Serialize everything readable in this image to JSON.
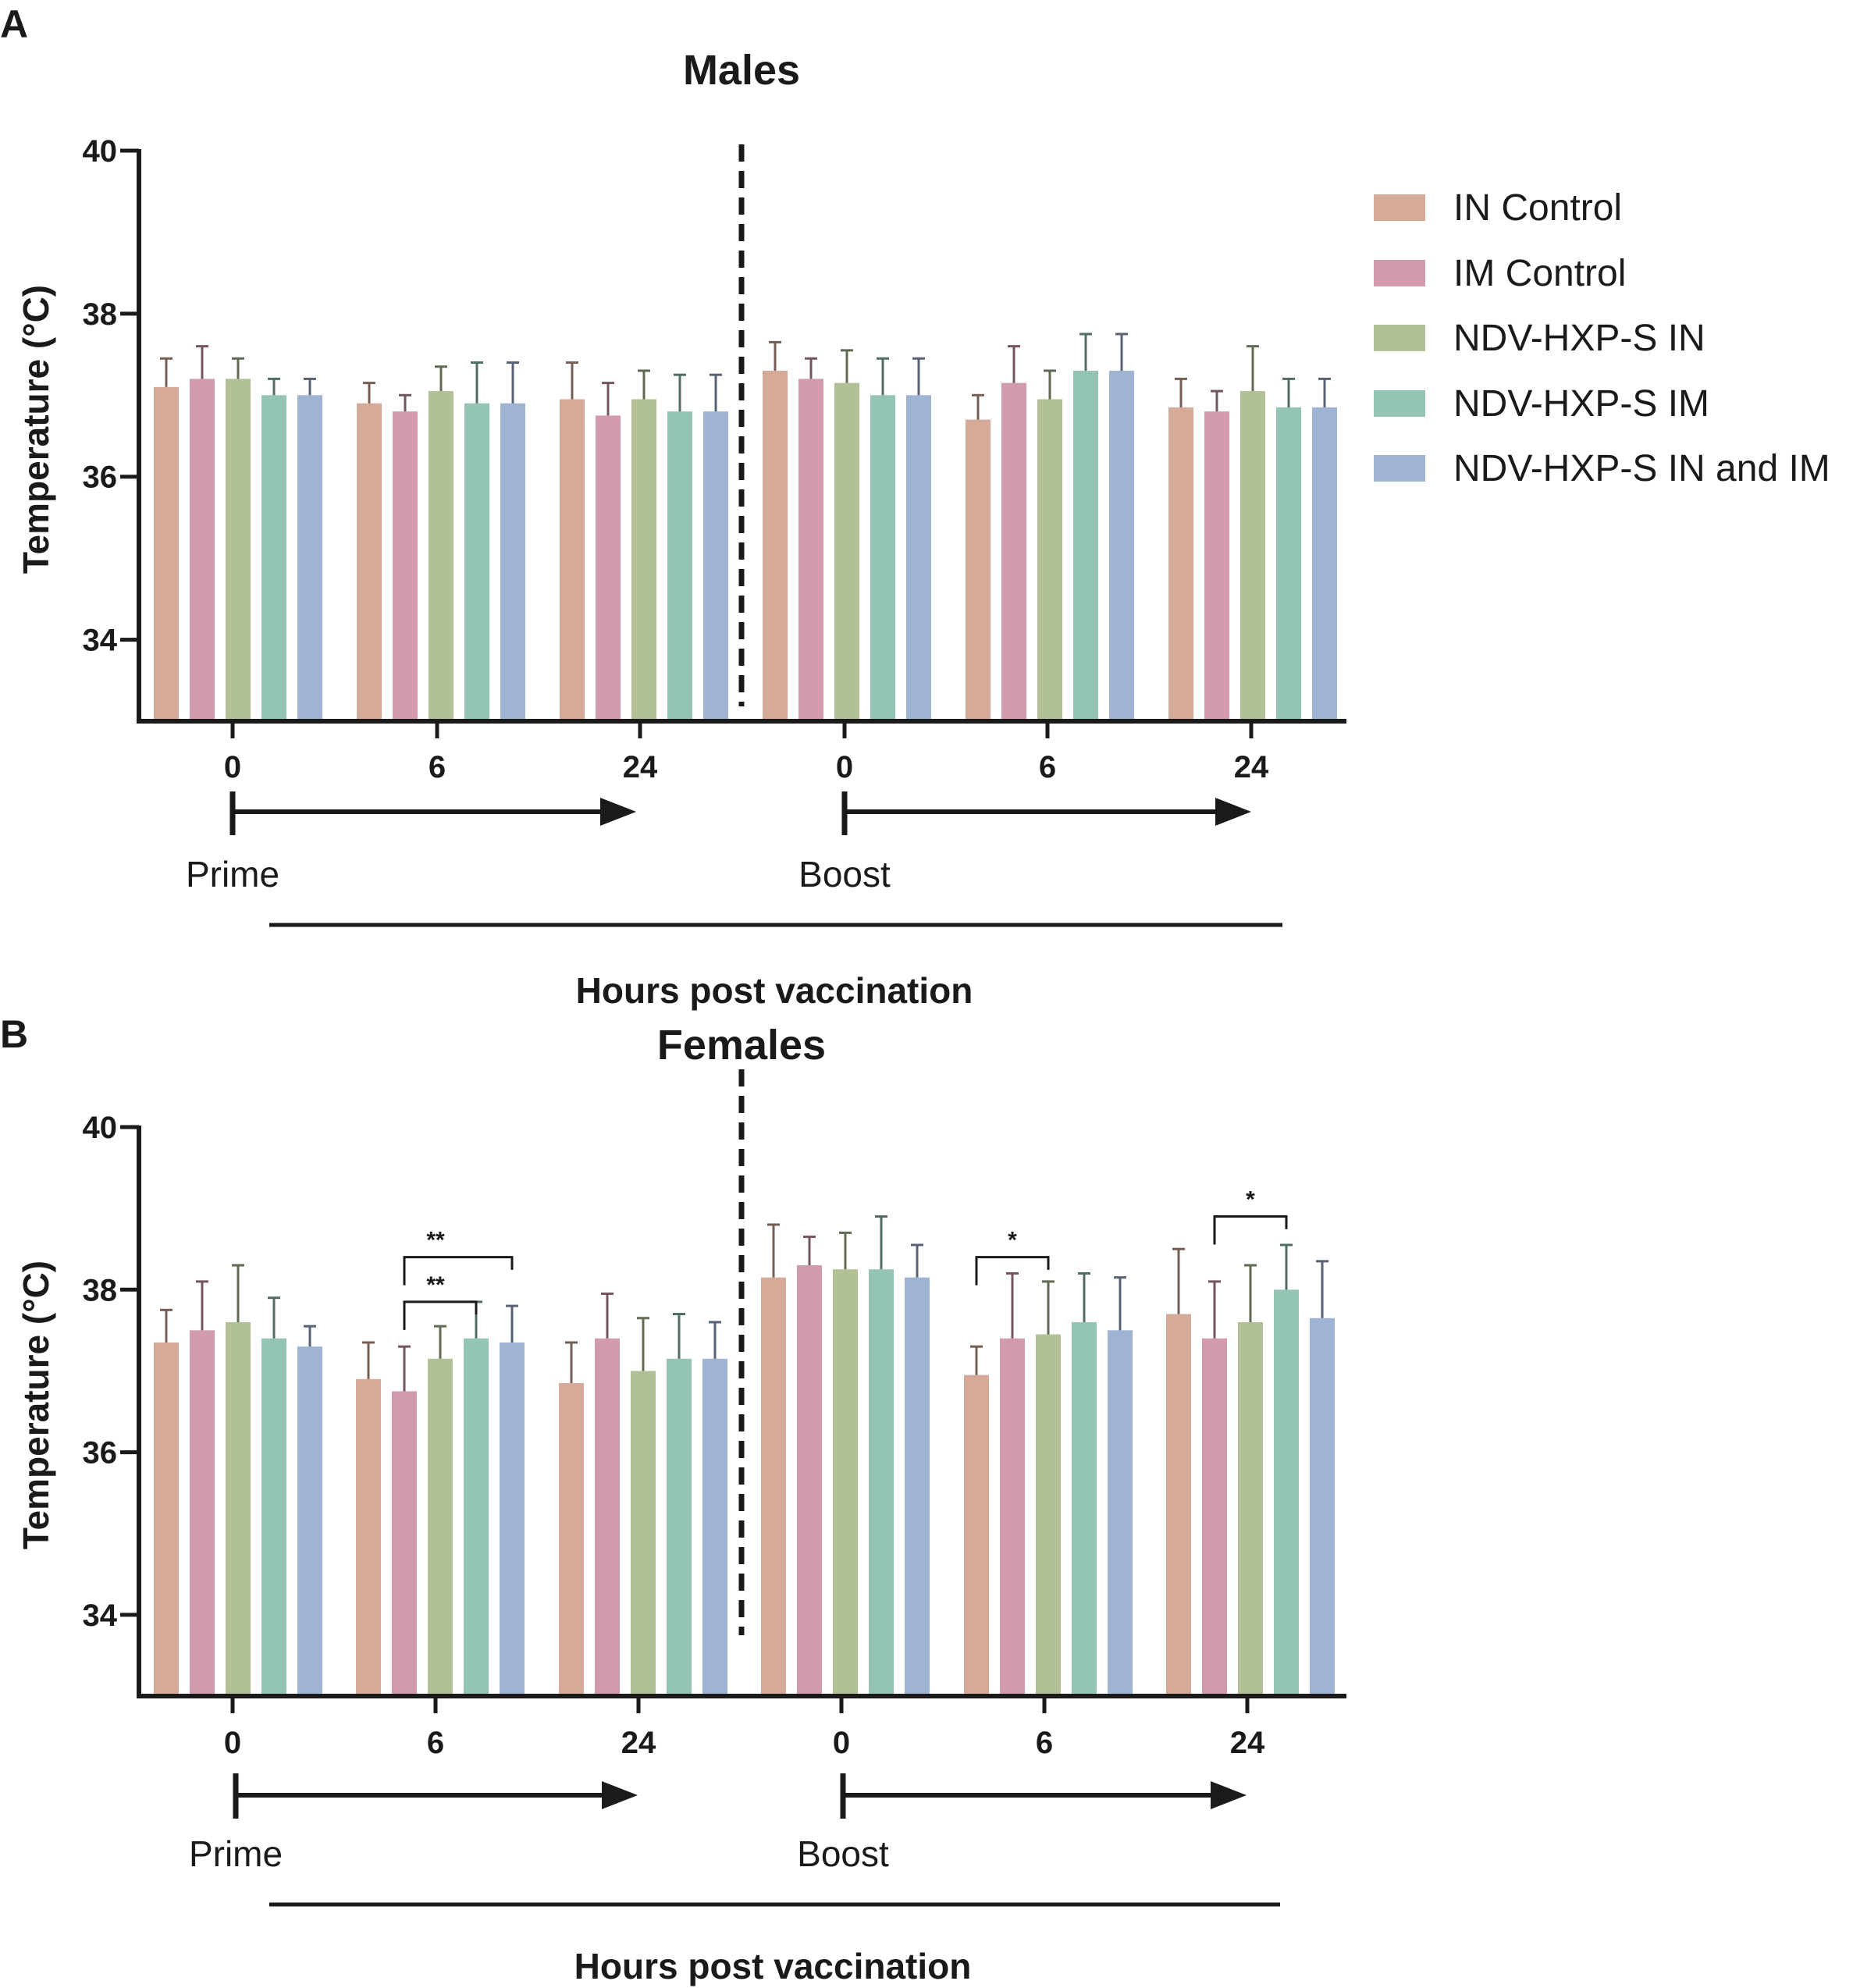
{
  "legend": {
    "items": [
      {
        "label": "IN Control",
        "color": "#d5aa98"
      },
      {
        "label": "IM Control",
        "color": "#d19aae"
      },
      {
        "label": "NDV-HXP-S IN",
        "color": "#b1c095"
      },
      {
        "label": "NDV-HXP-S IM",
        "color": "#93c4b6"
      },
      {
        "label": "NDV-HXP-S IN and IM",
        "color": "#9fb3d4"
      }
    ]
  },
  "chart_data": [
    {
      "type": "bar",
      "panel": "A",
      "title": "Males",
      "ylabel": "Temperature  (°C)",
      "xlabel": "Hours post vaccination",
      "ylim": [
        33,
        40
      ],
      "yticks": [
        "34",
        "36",
        "38",
        "40"
      ],
      "phases": [
        "Prime",
        "Boost"
      ],
      "categories": [
        "0",
        "6",
        "24",
        "0",
        "6",
        "24"
      ],
      "series": [
        {
          "name": "IN Control",
          "values": [
            37.1,
            36.9,
            36.95,
            37.3,
            36.7,
            36.85
          ],
          "errors": [
            0.35,
            0.25,
            0.45,
            0.35,
            0.3,
            0.35
          ]
        },
        {
          "name": "IM Control",
          "values": [
            37.2,
            36.8,
            36.75,
            37.2,
            37.15,
            36.8
          ],
          "errors": [
            0.4,
            0.2,
            0.4,
            0.25,
            0.45,
            0.25
          ]
        },
        {
          "name": "NDV-HXP-S IN",
          "values": [
            37.2,
            37.05,
            36.95,
            37.15,
            36.95,
            37.05
          ],
          "errors": [
            0.25,
            0.3,
            0.35,
            0.4,
            0.35,
            0.55
          ]
        },
        {
          "name": "NDV-HXP-S IM",
          "values": [
            37.0,
            36.9,
            36.8,
            37.0,
            37.3,
            36.85
          ],
          "errors": [
            0.2,
            0.5,
            0.45,
            0.45,
            0.45,
            0.35
          ]
        },
        {
          "name": "NDV-HXP-S IN and IM",
          "values": [
            37.0,
            36.9,
            36.8,
            37.0,
            37.3,
            36.85
          ],
          "errors": [
            0.2,
            0.5,
            0.45,
            0.45,
            0.45,
            0.35
          ]
        }
      ],
      "significance": []
    },
    {
      "type": "bar",
      "panel": "B",
      "title": "Females",
      "ylabel": "Temperature  (°C)",
      "xlabel": "Hours post vaccination",
      "ylim": [
        33,
        40
      ],
      "yticks": [
        "34",
        "36",
        "38",
        "40"
      ],
      "phases": [
        "Prime",
        "Boost"
      ],
      "categories": [
        "0",
        "6",
        "24",
        "0",
        "6",
        "24"
      ],
      "series": [
        {
          "name": "IN Control",
          "values": [
            37.35,
            36.9,
            36.85,
            38.15,
            36.95,
            37.7
          ],
          "errors": [
            0.4,
            0.45,
            0.5,
            0.65,
            0.35,
            0.8
          ]
        },
        {
          "name": "IM Control",
          "values": [
            37.5,
            36.75,
            37.4,
            38.3,
            37.4,
            37.4
          ],
          "errors": [
            0.6,
            0.55,
            0.55,
            0.35,
            0.8,
            0.7
          ]
        },
        {
          "name": "NDV-HXP-S IN",
          "values": [
            37.6,
            37.15,
            37.0,
            38.25,
            37.45,
            37.6
          ],
          "errors": [
            0.7,
            0.4,
            0.65,
            0.45,
            0.65,
            0.7
          ]
        },
        {
          "name": "NDV-HXP-S IM",
          "values": [
            37.4,
            37.4,
            37.15,
            38.25,
            37.6,
            38.0
          ],
          "errors": [
            0.5,
            0.45,
            0.55,
            0.65,
            0.6,
            0.55
          ]
        },
        {
          "name": "NDV-HXP-S IN and IM",
          "values": [
            37.3,
            37.35,
            37.15,
            38.15,
            37.5,
            37.65
          ],
          "errors": [
            0.25,
            0.45,
            0.45,
            0.4,
            0.65,
            0.7
          ]
        }
      ],
      "significance": [
        {
          "group": 1,
          "from": 1,
          "to": 3,
          "label": "**",
          "level": 37.85
        },
        {
          "group": 1,
          "from": 1,
          "to": 4,
          "label": "**",
          "level": 38.4
        },
        {
          "group": 4,
          "from": 0,
          "to": 2,
          "label": "*",
          "level": 38.4
        },
        {
          "group": 5,
          "from": 1,
          "to": 3,
          "label": "*",
          "level": 38.9
        }
      ]
    }
  ]
}
